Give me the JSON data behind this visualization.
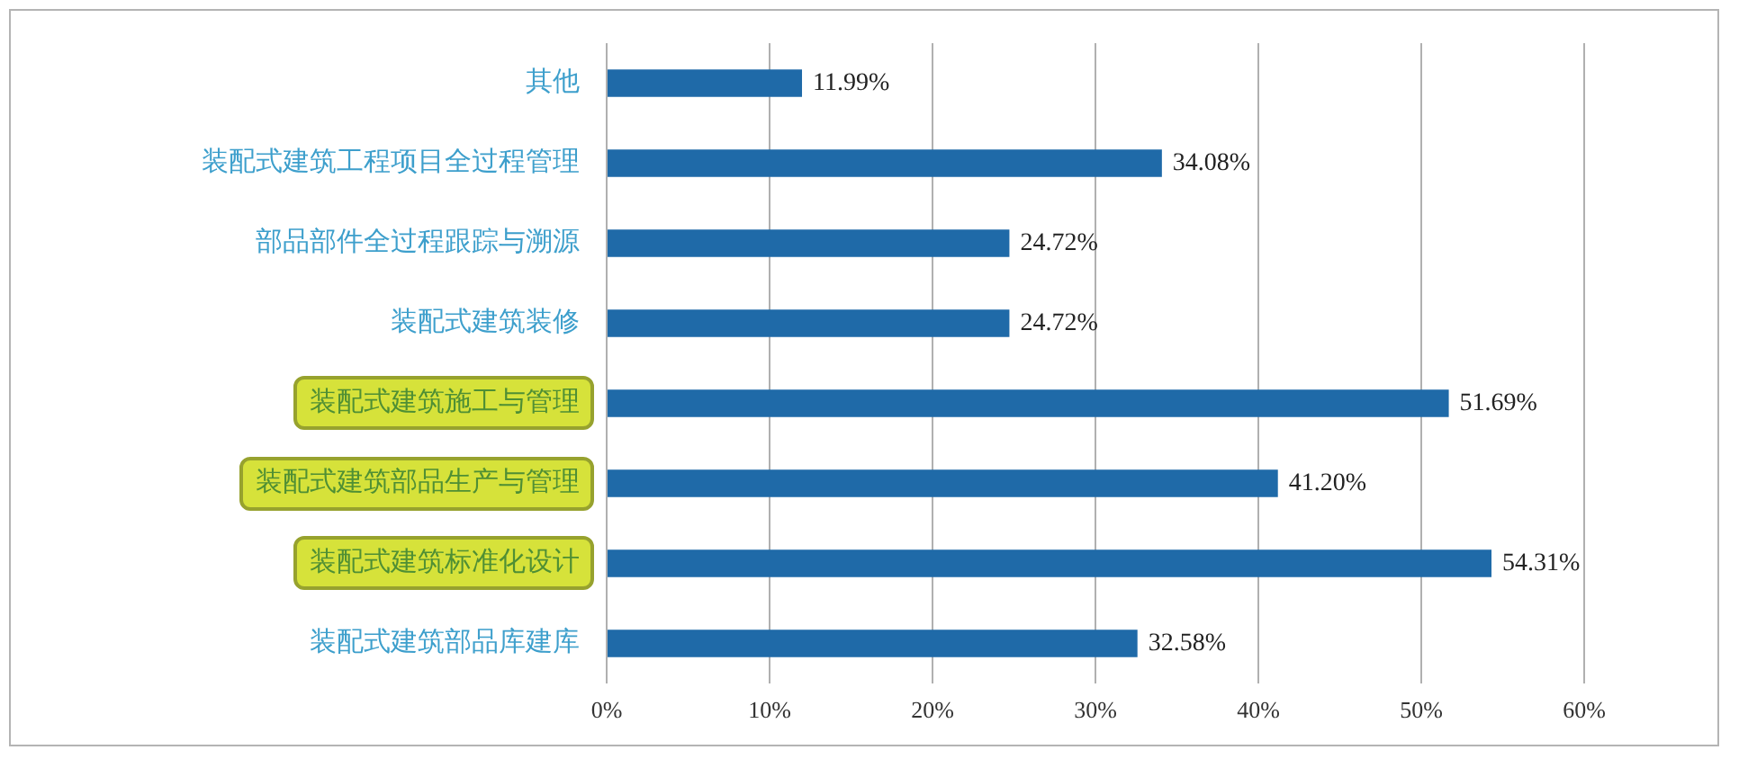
{
  "chart_data": {
    "type": "bar",
    "orientation": "horizontal",
    "categories": [
      "其他",
      "装配式建筑工程项目全过程管理",
      "部品部件全过程跟踪与溯源",
      "装配式建筑装修",
      "装配式建筑施工与管理",
      "装配式建筑部品生产与管理",
      "装配式建筑标准化设计",
      "装配式建筑部品库建库"
    ],
    "values": [
      11.99,
      34.08,
      24.72,
      24.72,
      51.69,
      41.2,
      54.31,
      32.58
    ],
    "color": "#1f6aa8",
    "value_labels": [
      "11.99%",
      "34.08%",
      "24.72%",
      "24.72%",
      "51.69%",
      "41.20%",
      "54.31%",
      "32.58%"
    ],
    "xlim": [
      0,
      60
    ],
    "xticks": [
      {
        "value": 0,
        "label": "0%"
      },
      {
        "value": 10,
        "label": "10%"
      },
      {
        "value": 20,
        "label": "20%"
      },
      {
        "value": 30,
        "label": "30%"
      },
      {
        "value": 40,
        "label": "40%"
      },
      {
        "value": 50,
        "label": "50%"
      },
      {
        "value": 60,
        "label": "60%"
      }
    ],
    "grid": "x"
  }
}
